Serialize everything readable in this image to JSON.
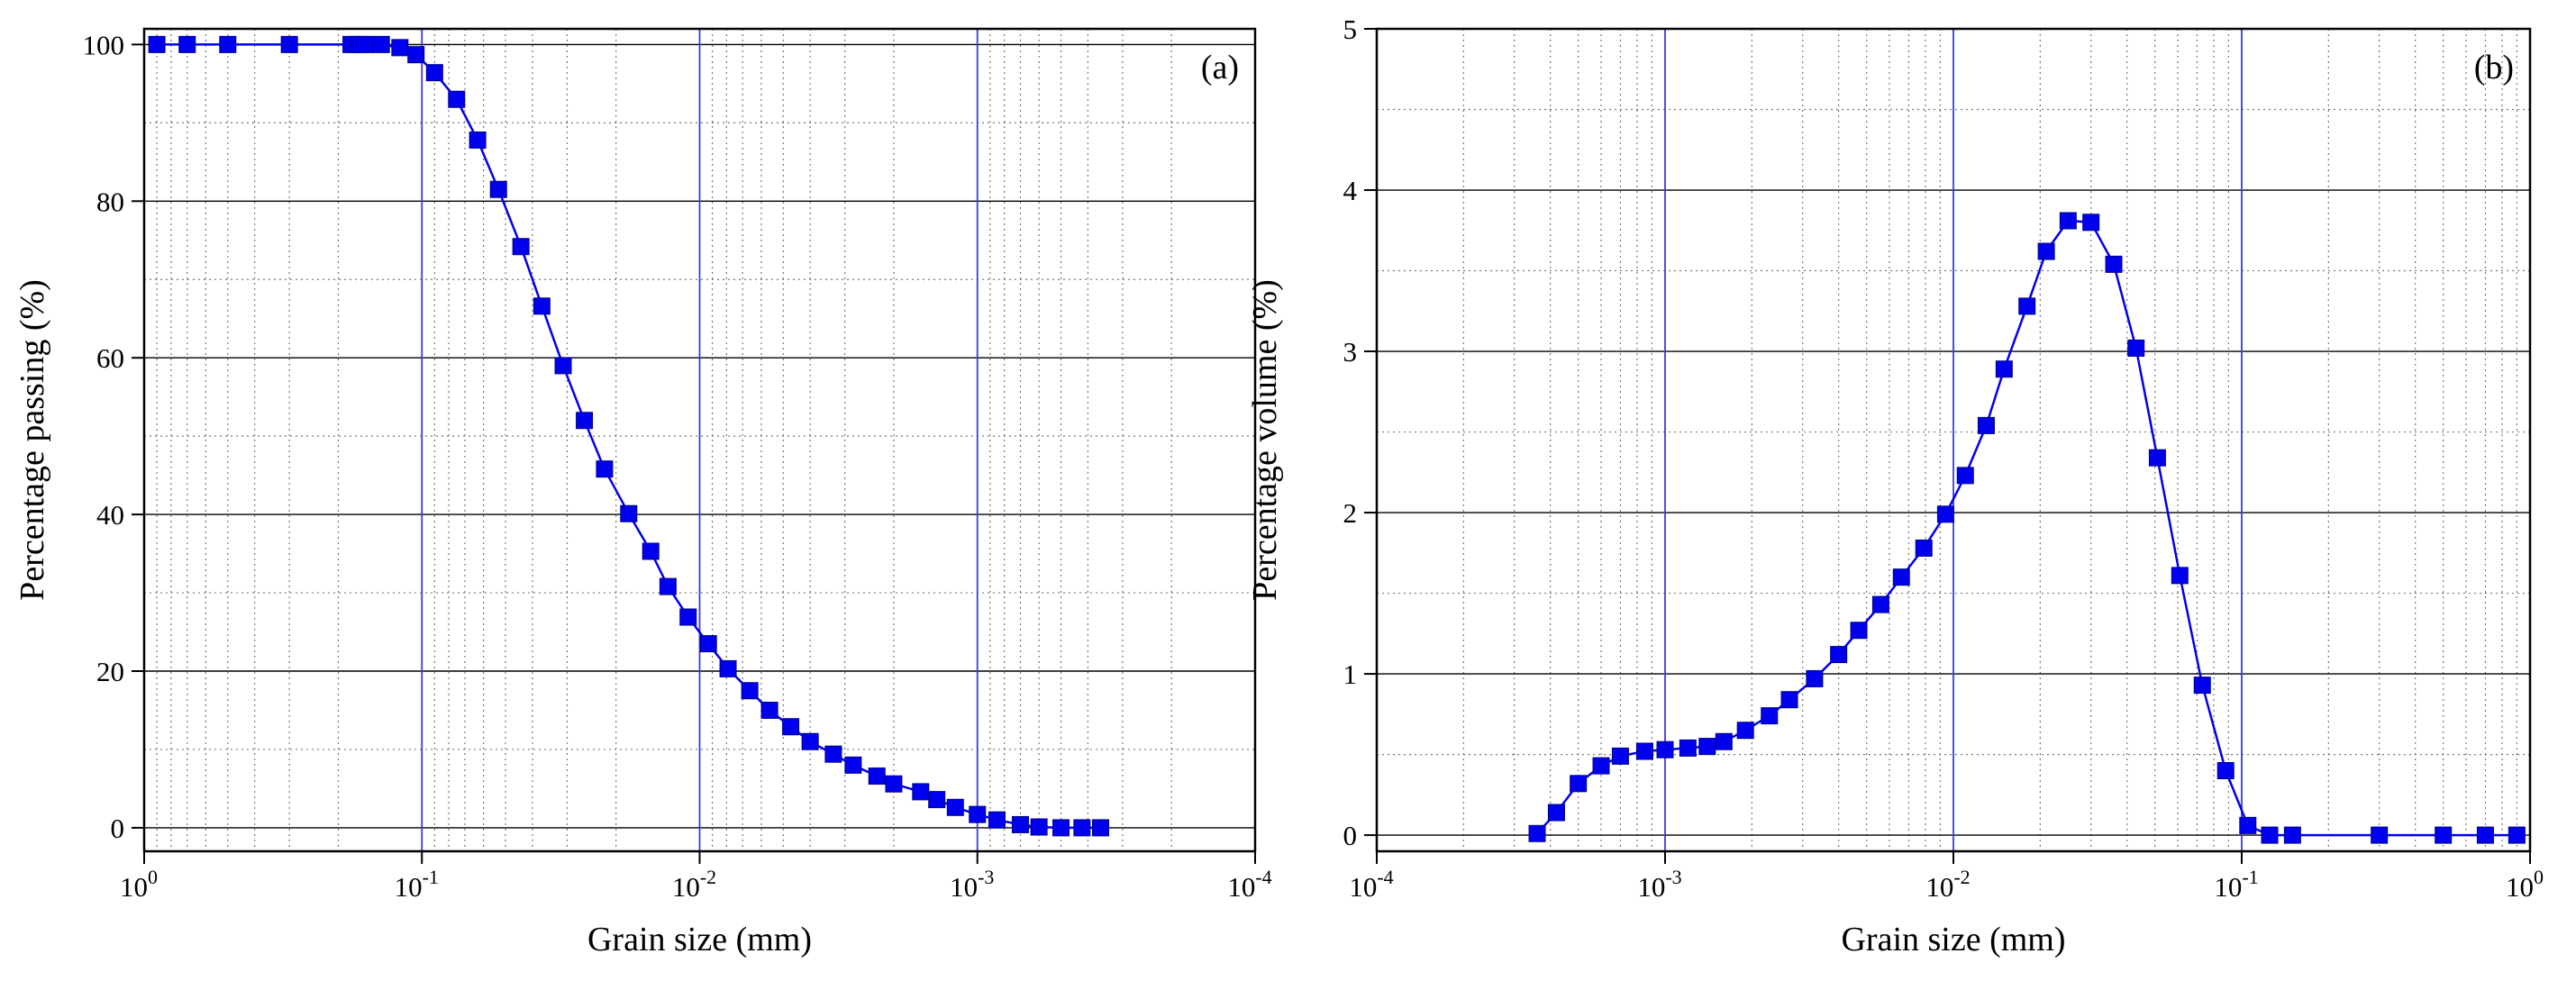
{
  "chart_data": [
    {
      "type": "line",
      "panel_label": "(a)",
      "xlabel": "Grain size (mm)",
      "ylabel": "Percentage passing (%)",
      "xscale": "log",
      "x_reversed": true,
      "xlim": [
        1,
        0.0001
      ],
      "ylim": [
        -3,
        102
      ],
      "x_ticks": [
        {
          "value": 1,
          "base": "10",
          "exp": "0"
        },
        {
          "value": 0.1,
          "base": "10",
          "exp": "-1"
        },
        {
          "value": 0.01,
          "base": "10",
          "exp": "-2"
        },
        {
          "value": 0.001,
          "base": "10",
          "exp": "-3"
        },
        {
          "value": 0.0001,
          "base": "10",
          "exp": "-4"
        }
      ],
      "y_ticks": [
        {
          "value": 0,
          "label": "0"
        },
        {
          "value": 20,
          "label": "20"
        },
        {
          "value": 40,
          "label": "40"
        },
        {
          "value": 60,
          "label": "60"
        },
        {
          "value": 80,
          "label": "80"
        },
        {
          "value": 100,
          "label": "100"
        }
      ],
      "grid": "major solid, minor dotted",
      "marker": "square",
      "color": "#0000ee",
      "series": [
        {
          "x": [
            0.9,
            0.7,
            0.5,
            0.3,
            0.18,
            0.17,
            0.16,
            0.14,
            0.12,
            0.105,
            0.09,
            0.075,
            0.063,
            0.053,
            0.044,
            0.037,
            0.031,
            0.026,
            0.022,
            0.018,
            0.015,
            0.013,
            0.011,
            0.0093,
            0.0079,
            0.0066,
            0.0056,
            0.0047,
            0.004,
            0.0033,
            0.0028,
            0.0023,
            0.002,
            0.0016,
            0.0014,
            0.0012,
            0.001,
            0.00085,
            0.0007,
            0.0006,
            0.0005,
            0.00042,
            0.00036
          ],
          "y": [
            100,
            100,
            100,
            100,
            100,
            100,
            100,
            100,
            99.6,
            98.7,
            96.4,
            93,
            87.8,
            81.5,
            74.2,
            66.6,
            59,
            52,
            45.8,
            40.1,
            35.3,
            30.8,
            26.9,
            23.5,
            20.3,
            17.5,
            15,
            12.9,
            11,
            9.4,
            8,
            6.6,
            5.6,
            4.6,
            3.6,
            2.6,
            1.7,
            1,
            0.4,
            0.1,
            0,
            0,
            0
          ]
        }
      ]
    },
    {
      "type": "line",
      "panel_label": "(b)",
      "xlabel": "Grain size (mm)",
      "ylabel": "Percentage volume (%)",
      "xscale": "log",
      "x_reversed": false,
      "xlim": [
        0.0001,
        1
      ],
      "ylim": [
        -0.1,
        5
      ],
      "x_ticks": [
        {
          "value": 0.0001,
          "base": "10",
          "exp": "-4"
        },
        {
          "value": 0.001,
          "base": "10",
          "exp": "-3"
        },
        {
          "value": 0.01,
          "base": "10",
          "exp": "-2"
        },
        {
          "value": 0.1,
          "base": "10",
          "exp": "-1"
        },
        {
          "value": 1,
          "base": "10",
          "exp": "0"
        }
      ],
      "y_ticks": [
        {
          "value": 0,
          "label": "0"
        },
        {
          "value": 1,
          "label": "1"
        },
        {
          "value": 2,
          "label": "2"
        },
        {
          "value": 3,
          "label": "3"
        },
        {
          "value": 4,
          "label": "4"
        },
        {
          "value": 5,
          "label": "5"
        }
      ],
      "grid": "major solid, minor dotted",
      "marker": "square",
      "color": "#0000ee",
      "series": [
        {
          "x": [
            0.00036,
            0.00042,
            0.0005,
            0.0006,
            0.0007,
            0.00085,
            0.001,
            0.0012,
            0.0014,
            0.0016,
            0.0019,
            0.0023,
            0.0027,
            0.0033,
            0.004,
            0.0047,
            0.0056,
            0.0066,
            0.0079,
            0.0094,
            0.011,
            0.013,
            0.015,
            0.018,
            0.021,
            0.025,
            0.03,
            0.036,
            0.043,
            0.051,
            0.061,
            0.073,
            0.088,
            0.105,
            0.125,
            0.15,
            0.3,
            0.5,
            0.7,
            0.9
          ],
          "y": [
            0.01,
            0.14,
            0.32,
            0.43,
            0.49,
            0.52,
            0.53,
            0.54,
            0.55,
            0.58,
            0.65,
            0.74,
            0.84,
            0.97,
            1.12,
            1.27,
            1.43,
            1.6,
            1.78,
            1.99,
            2.23,
            2.54,
            2.89,
            3.28,
            3.62,
            3.81,
            3.8,
            3.54,
            3.02,
            2.34,
            1.61,
            0.93,
            0.4,
            0.06,
            0,
            0,
            0,
            0,
            0,
            0
          ]
        }
      ]
    }
  ]
}
